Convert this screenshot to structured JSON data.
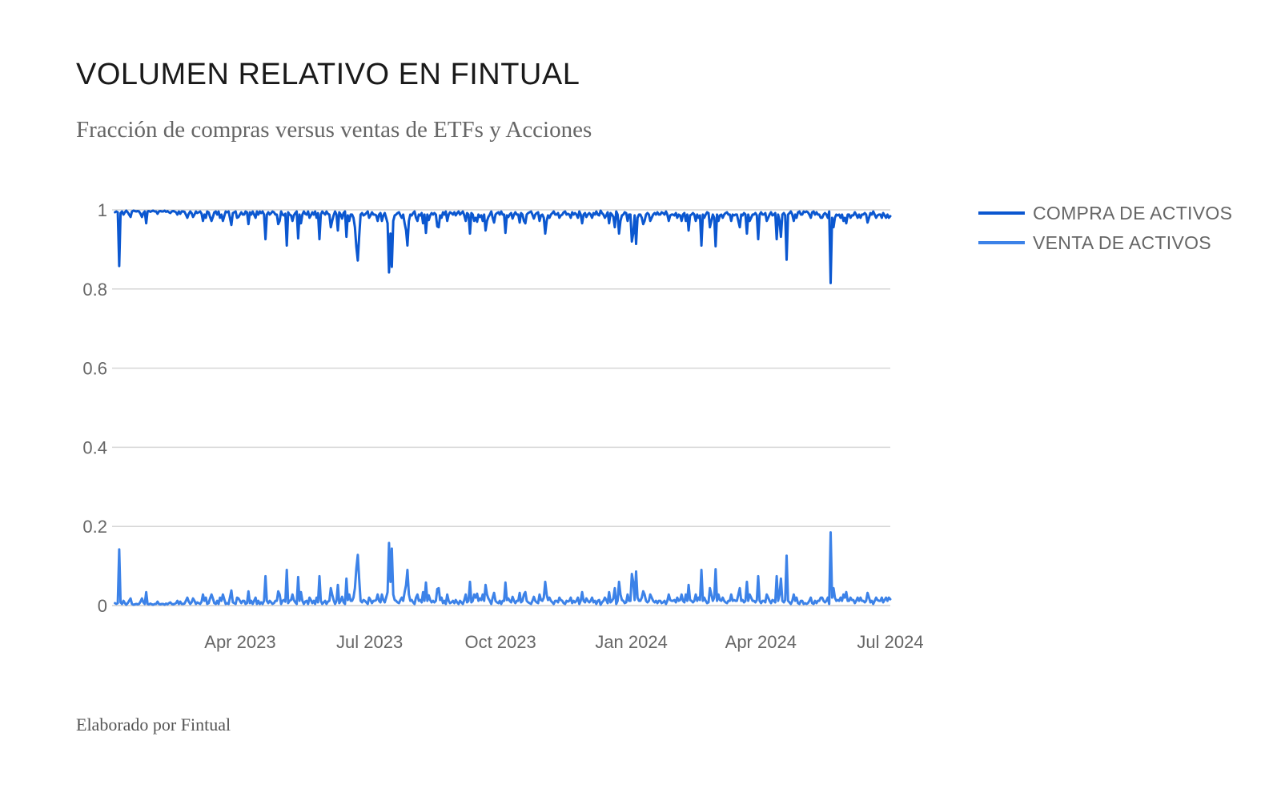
{
  "header": {
    "title": "VOLUMEN RELATIVO EN FINTUAL",
    "subtitle": "Fracción de compras versus ventas de ETFs y Acciones"
  },
  "footer": {
    "credit": "Elaborado por Fintual"
  },
  "chart_data": {
    "type": "line",
    "title": "VOLUMEN RELATIVO EN FINTUAL",
    "subtitle": "Fracción de compras versus ventas de ETFs y Acciones",
    "xlabel": "",
    "ylabel": "",
    "x_range": [
      "2023-01-03",
      "2024-07-01"
    ],
    "xlim": [
      "2023-01-01",
      "2024-07-01"
    ],
    "ylim": [
      0,
      1
    ],
    "yticks": [
      0,
      0.2,
      0.4,
      0.6,
      0.8,
      1
    ],
    "ytick_labels": [
      "0",
      "0.2",
      "0.4",
      "0.6",
      "0.8",
      "1"
    ],
    "xticks": [
      "2023-04-01",
      "2023-07-01",
      "2023-10-01",
      "2024-01-01",
      "2024-04-01",
      "2024-07-01"
    ],
    "xtick_labels": [
      "Apr 2023",
      "Jul 2023",
      "Oct 2023",
      "Jan 2024",
      "Apr 2024",
      "Jul 2024"
    ],
    "grid": true,
    "legend_position": "right",
    "series": [
      {
        "name": "COMPRA DE ACTIVOS",
        "color": "#0b57d0",
        "stroke_width": 3,
        "sell_values": [
          0.006,
          0.004,
          0.006,
          0.142,
          0.008,
          0.004,
          0.012,
          0.006,
          0.002,
          0.006,
          0.012,
          0.018,
          0.004,
          0.002,
          0.003,
          0.004,
          0.003,
          0.004,
          0.01,
          0.018,
          0.008,
          0.004,
          0.034,
          0.004,
          0.003,
          0.005,
          0.003,
          0.002,
          0.004,
          0.004,
          0.01,
          0.004,
          0.003,
          0.004,
          0.004,
          0.002,
          0.005,
          0.003,
          0.006,
          0.008,
          0.004,
          0.003,
          0.004,
          0.006,
          0.012,
          0.004,
          0.01,
          0.004,
          0.004,
          0.005,
          0.012,
          0.02,
          0.01,
          0.004,
          0.008,
          0.018,
          0.012,
          0.004,
          0.008,
          0.006,
          0.004,
          0.01,
          0.028,
          0.012,
          0.02,
          0.004,
          0.006,
          0.018,
          0.028,
          0.018,
          0.006,
          0.004,
          0.012,
          0.004,
          0.02,
          0.012,
          0.028,
          0.016,
          0.004,
          0.006,
          0.004,
          0.02,
          0.038,
          0.008,
          0.006,
          0.004,
          0.02,
          0.018,
          0.012,
          0.006,
          0.012,
          0.012,
          0.004,
          0.006,
          0.036,
          0.006,
          0.012,
          0.004,
          0.012,
          0.02,
          0.004,
          0.012,
          0.004,
          0.008,
          0.004,
          0.012,
          0.074,
          0.012,
          0.006,
          0.012,
          0.008,
          0.004,
          0.006,
          0.012,
          0.012,
          0.036,
          0.028,
          0.004,
          0.012,
          0.014,
          0.01,
          0.09,
          0.006,
          0.012,
          0.014,
          0.028,
          0.014,
          0.008,
          0.004,
          0.072,
          0.012,
          0.034,
          0.012,
          0.004,
          0.01,
          0.012,
          0.004,
          0.02,
          0.014,
          0.006,
          0.012,
          0.004,
          0.02,
          0.008,
          0.074,
          0.012,
          0.004,
          0.008,
          0.012,
          0.004,
          0.01,
          0.012,
          0.044,
          0.028,
          0.014,
          0.004,
          0.012,
          0.052,
          0.006,
          0.012,
          0.022,
          0.008,
          0.004,
          0.068,
          0.014,
          0.028,
          0.012,
          0.012,
          0.02,
          0.044,
          0.094,
          0.128,
          0.068,
          0.012,
          0.008,
          0.014,
          0.012,
          0.008,
          0.004,
          0.02,
          0.014,
          0.006,
          0.012,
          0.012,
          0.014,
          0.028,
          0.012,
          0.008,
          0.028,
          0.014,
          0.008,
          0.02,
          0.034,
          0.158,
          0.06,
          0.144,
          0.028,
          0.014,
          0.012,
          0.008,
          0.006,
          0.014,
          0.02,
          0.012,
          0.034,
          0.052,
          0.09,
          0.028,
          0.012,
          0.014,
          0.008,
          0.004,
          0.02,
          0.028,
          0.012,
          0.014,
          0.008,
          0.034,
          0.012,
          0.058,
          0.012,
          0.026,
          0.014,
          0.008,
          0.012,
          0.008,
          0.012,
          0.042,
          0.044,
          0.014,
          0.02,
          0.006,
          0.012,
          0.004,
          0.028,
          0.012,
          0.006,
          0.008,
          0.012,
          0.006,
          0.014,
          0.008,
          0.004,
          0.012,
          0.008,
          0.004,
          0.014,
          0.028,
          0.008,
          0.012,
          0.06,
          0.008,
          0.012,
          0.028,
          0.02,
          0.03,
          0.012,
          0.018,
          0.014,
          0.028,
          0.012,
          0.052,
          0.028,
          0.018,
          0.012,
          0.004,
          0.02,
          0.032,
          0.012,
          0.008,
          0.006,
          0.012,
          0.004,
          0.012,
          0.012,
          0.058,
          0.014,
          0.018,
          0.012,
          0.008,
          0.022,
          0.012,
          0.006,
          0.012,
          0.012,
          0.032,
          0.008,
          0.012,
          0.028,
          0.034,
          0.012,
          0.008,
          0.006,
          0.004,
          0.012,
          0.022,
          0.012,
          0.008,
          0.006,
          0.028,
          0.014,
          0.012,
          0.02,
          0.06,
          0.028,
          0.014,
          0.02,
          0.012,
          0.008,
          0.004,
          0.012,
          0.012,
          0.008,
          0.02,
          0.014,
          0.012,
          0.006,
          0.004,
          0.012,
          0.01,
          0.012,
          0.02,
          0.006,
          0.012,
          0.008,
          0.012,
          0.02,
          0.004,
          0.012,
          0.034,
          0.012,
          0.008,
          0.018,
          0.012,
          0.008,
          0.012,
          0.02,
          0.008,
          0.012,
          0.004,
          0.012,
          0.014,
          0.002,
          0.008,
          0.012,
          0.02,
          0.014,
          0.006,
          0.034,
          0.008,
          0.012,
          0.018,
          0.044,
          0.004,
          0.012,
          0.06,
          0.028,
          0.014,
          0.012,
          0.006,
          0.008,
          0.028,
          0.012,
          0.012,
          0.08,
          0.058,
          0.014,
          0.086,
          0.02,
          0.012,
          0.012,
          0.02,
          0.036,
          0.028,
          0.012,
          0.008,
          0.012,
          0.028,
          0.02,
          0.012,
          0.008,
          0.012,
          0.006,
          0.012,
          0.012,
          0.006,
          0.008,
          0.012,
          0.004,
          0.012,
          0.028,
          0.014,
          0.012,
          0.012,
          0.014,
          0.008,
          0.02,
          0.012,
          0.014,
          0.028,
          0.012,
          0.008,
          0.028,
          0.012,
          0.052,
          0.014,
          0.012,
          0.008,
          0.012,
          0.028,
          0.012,
          0.02,
          0.014,
          0.09,
          0.012,
          0.02,
          0.012,
          0.006,
          0.008,
          0.044,
          0.028,
          0.012,
          0.02,
          0.092,
          0.012,
          0.028,
          0.014,
          0.012,
          0.02,
          0.012,
          0.008,
          0.006,
          0.012,
          0.012,
          0.028,
          0.012,
          0.014,
          0.012,
          0.012,
          0.028,
          0.044,
          0.012,
          0.014,
          0.008,
          0.012,
          0.06,
          0.012,
          0.028,
          0.02,
          0.012,
          0.012,
          0.008,
          0.014,
          0.074,
          0.012,
          0.006,
          0.012,
          0.012,
          0.008,
          0.028,
          0.02,
          0.012,
          0.006,
          0.014,
          0.012,
          0.008,
          0.074,
          0.012,
          0.028,
          0.068,
          0.012,
          0.008,
          0.014,
          0.126,
          0.012,
          0.008,
          0.004,
          0.012,
          0.028,
          0.012,
          0.02,
          0.006,
          0.004,
          0.012,
          0.012,
          0.004,
          0.006,
          0.004,
          0.006,
          0.012,
          0.02,
          0.006,
          0.004,
          0.012,
          0.006,
          0.012,
          0.012,
          0.02,
          0.02,
          0.012,
          0.008,
          0.012,
          0.02,
          0.004,
          0.185,
          0.02,
          0.044,
          0.02,
          0.012,
          0.014,
          0.012,
          0.02,
          0.012,
          0.028,
          0.02,
          0.034,
          0.012,
          0.012,
          0.02,
          0.014,
          0.014,
          0.006,
          0.012,
          0.02,
          0.012,
          0.02,
          0.012,
          0.012,
          0.008,
          0.012,
          0.032,
          0.02,
          0.008,
          0.012,
          0.004,
          0.012,
          0.02,
          0.014,
          0.012,
          0.012,
          0.02,
          0.008,
          0.014,
          0.02,
          0.012,
          0.02,
          0.016
        ]
      },
      {
        "name": "VENTA DE ACTIVOS",
        "color": "#3c82e8",
        "stroke_width": 3
      }
    ]
  }
}
